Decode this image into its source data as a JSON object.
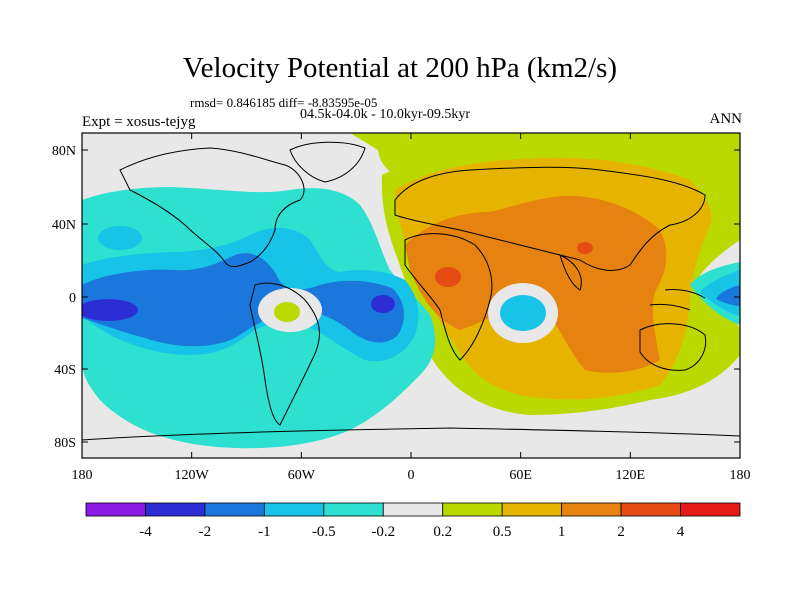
{
  "title": "Velocity Potential at 200 hPa (km2/s)",
  "stats": "rmsd= 0.846185 diff= -8.83595e-05",
  "subtitle": "04.5k-04.0k - 10.0kyr-09.5kyr",
  "experiment": "Expt = xosus-tejyg",
  "season": "ANN",
  "lat_axis": [
    "80N",
    "40N",
    "0",
    "40S",
    "80S"
  ],
  "lon_axis": [
    "180",
    "120W",
    "60W",
    "0",
    "60E",
    "120E",
    "180"
  ],
  "colorbar": {
    "labels": [
      "-4",
      "-2",
      "-1",
      "-0.5",
      "-0.2",
      "0.2",
      "0.5",
      "1",
      "2",
      "4"
    ],
    "colors": [
      "#8b1ae6",
      "#2d2dd6",
      "#1a78dc",
      "#17c3e6",
      "#2de0d0",
      "#e8e8e8",
      "#b9d900",
      "#e6b400",
      "#e6820f",
      "#e64b14",
      "#e61919"
    ]
  },
  "palette": {
    "background_field": "#e8e8e8",
    "neutral_positive": "#b9d900",
    "pos_mid": "#e6b400",
    "pos_high": "#e6820f",
    "pos_peak": "#e64b14",
    "neg_low": "#2de0d0",
    "neg_mid": "#17c3e6",
    "neg_high": "#1a78dc",
    "neg_peak": "#2d2dd6"
  }
}
